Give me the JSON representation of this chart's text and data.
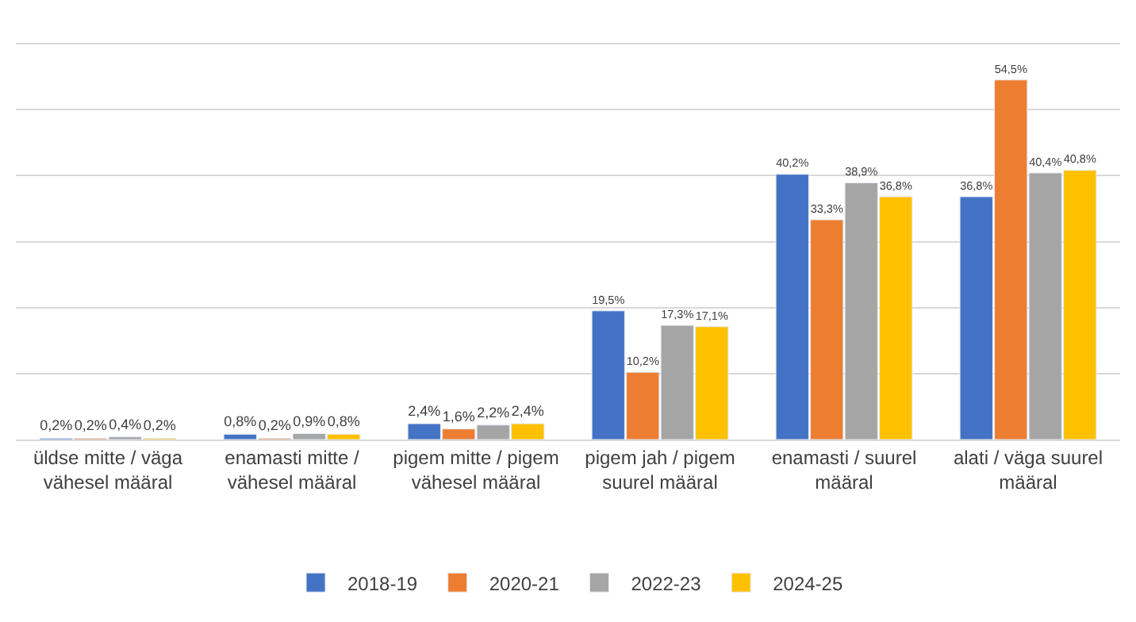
{
  "chart_data": {
    "type": "bar",
    "categories": [
      "üldse mitte / väga vähesel määral",
      "enamasti mitte / vähesel määral",
      "pigem mitte / pigem vähesel määral",
      "pigem jah / pigem suurel määral",
      "enamasti / suurel määral",
      "alati / väga suurel määral"
    ],
    "series": [
      {
        "name": "2018-19",
        "color": "#4472c4",
        "values": [
          0.2,
          0.8,
          2.4,
          19.5,
          40.2,
          36.8
        ],
        "value_labels": [
          "0,2%",
          "0,8%",
          "2,4%",
          "19,5%",
          "40,2%",
          "36,8%"
        ]
      },
      {
        "name": "2020-21",
        "color": "#ed7d31",
        "values": [
          0.2,
          0.2,
          1.6,
          10.2,
          33.3,
          54.5
        ],
        "value_labels": [
          "0,2%",
          "0,2%",
          "1,6%",
          "10,2%",
          "33,3%",
          "54,5%"
        ]
      },
      {
        "name": "2022-23",
        "color": "#a5a5a5",
        "values": [
          0.4,
          0.9,
          2.2,
          17.3,
          38.9,
          40.4
        ],
        "value_labels": [
          "0,4%",
          "0,9%",
          "2,2%",
          "17,3%",
          "38,9%",
          "40,4%"
        ]
      },
      {
        "name": "2024-25",
        "color": "#ffc000",
        "values": [
          0.2,
          0.8,
          2.4,
          17.1,
          36.8,
          40.8
        ],
        "value_labels": [
          "0,2%",
          "0,8%",
          "2,4%",
          "17,1%",
          "36,8%",
          "40,8%"
        ]
      }
    ],
    "yticks": [
      {
        "value": 0,
        "label": null
      },
      {
        "value": 10,
        "label": null
      },
      {
        "value": 20,
        "label": null
      },
      {
        "value": 30,
        "label": null
      },
      {
        "value": 40,
        "label": null
      },
      {
        "value": 50,
        "label": null
      },
      {
        "value": 60,
        "label": null
      }
    ],
    "tick_labels": "x",
    "grid": "y",
    "legend": "bottom"
  }
}
